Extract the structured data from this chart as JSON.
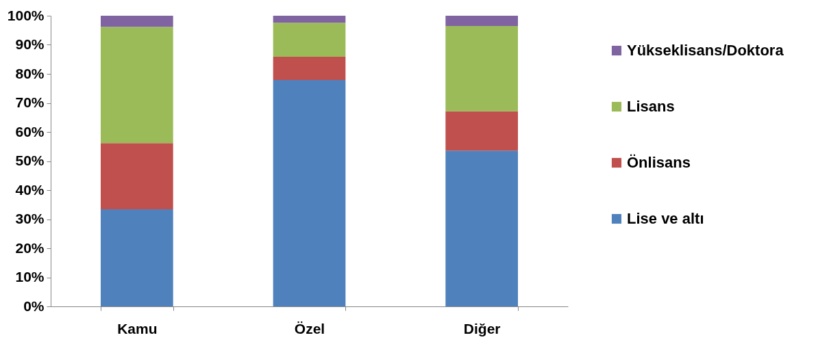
{
  "chart_data": {
    "type": "bar",
    "stacked": true,
    "categories": [
      "Kamu",
      "Özel",
      "Diğer"
    ],
    "series": [
      {
        "name": "Lise ve altı",
        "color": "#4f81bd",
        "values": [
          33.4,
          77.9,
          53.6
        ]
      },
      {
        "name": "Önlisans",
        "color": "#c0504d",
        "values": [
          22.8,
          8.0,
          13.5
        ]
      },
      {
        "name": "Lisans",
        "color": "#9bbb59",
        "values": [
          40.0,
          11.7,
          29.4
        ]
      },
      {
        "name": "Yükseklisans/Doktora",
        "color": "#8064a2",
        "values": [
          3.8,
          2.4,
          3.5
        ]
      }
    ],
    "ylim": [
      0,
      100
    ],
    "yticks": [
      {
        "value": 0,
        "label": "0%"
      },
      {
        "value": 10,
        "label": "10%"
      },
      {
        "value": 20,
        "label": "20%"
      },
      {
        "value": 30,
        "label": "30%"
      },
      {
        "value": 40,
        "label": "40%"
      },
      {
        "value": 50,
        "label": "50%"
      },
      {
        "value": 60,
        "label": "60%"
      },
      {
        "value": 70,
        "label": "70%"
      },
      {
        "value": 80,
        "label": "80%"
      },
      {
        "value": 90,
        "label": "90%"
      },
      {
        "value": 100,
        "label": "100%"
      }
    ],
    "grid": false,
    "legend": "right"
  }
}
